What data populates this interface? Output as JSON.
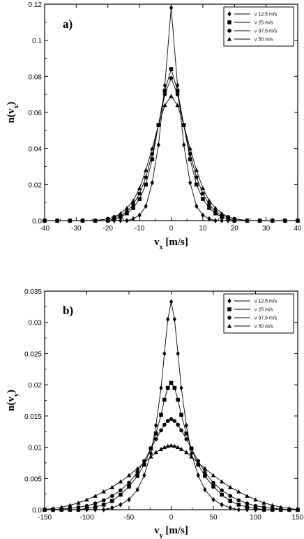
{
  "chart_data": [
    {
      "type": "line",
      "panel_label": "a)",
      "ylabel": "n(v_x)",
      "xlabel": "v_x [m/s]",
      "xlim": [
        -40,
        40
      ],
      "ylim": [
        0,
        0.12
      ],
      "xticks": [
        -40,
        -30,
        -20,
        -10,
        0,
        10,
        20,
        30,
        40
      ],
      "yticks": [
        0,
        0.02,
        0.04,
        0.06,
        0.08,
        0.1,
        0.12
      ],
      "xtick_labels": [
        "-40",
        "-30",
        "-20",
        "-10",
        "0",
        "10",
        "20",
        "30",
        "40"
      ],
      "ytick_labels": [
        "0.0",
        "0.02",
        "0.04",
        "0.06",
        "0.08",
        "0.1",
        "0.12"
      ],
      "legend_position": "top-right",
      "series": [
        {
          "name": "v 12.5 m/s",
          "marker": "diamond",
          "x": [
            -40,
            -36,
            -32,
            -28,
            -24,
            -20,
            -18,
            -16,
            -14,
            -12,
            -10,
            -8,
            -6,
            -4,
            -2,
            0,
            2,
            4,
            6,
            8,
            10,
            12,
            14,
            16,
            18,
            20,
            24,
            28,
            32,
            36,
            40
          ],
          "y": [
            0,
            0,
            0,
            0,
            0,
            0,
            0,
            0,
            0,
            0.001,
            0.003,
            0.008,
            0.021,
            0.042,
            0.075,
            0.118,
            0.075,
            0.042,
            0.021,
            0.008,
            0.003,
            0.001,
            0,
            0,
            0,
            0,
            0,
            0,
            0,
            0,
            0
          ]
        },
        {
          "name": "v 25 m/s",
          "marker": "square",
          "x": [
            -40,
            -36,
            -32,
            -28,
            -24,
            -20,
            -18,
            -16,
            -14,
            -12,
            -10,
            -8,
            -6,
            -4,
            -2,
            0,
            2,
            4,
            6,
            8,
            10,
            12,
            14,
            16,
            18,
            20,
            24,
            28,
            32,
            36,
            40
          ],
          "y": [
            0,
            0,
            0,
            0,
            0,
            0,
            0.001,
            0.002,
            0.004,
            0.007,
            0.012,
            0.02,
            0.034,
            0.053,
            0.072,
            0.084,
            0.072,
            0.053,
            0.034,
            0.02,
            0.012,
            0.007,
            0.004,
            0.002,
            0.001,
            0,
            0,
            0,
            0,
            0,
            0
          ]
        },
        {
          "name": "v 37.5 m/s",
          "marker": "circle",
          "x": [
            -40,
            -36,
            -32,
            -28,
            -24,
            -20,
            -18,
            -16,
            -14,
            -12,
            -10,
            -8,
            -6,
            -4,
            -2,
            0,
            2,
            4,
            6,
            8,
            10,
            12,
            14,
            16,
            18,
            20,
            24,
            28,
            32,
            36,
            40
          ],
          "y": [
            0,
            0,
            0,
            0,
            0,
            0.001,
            0.002,
            0.003,
            0.005,
            0.009,
            0.015,
            0.024,
            0.037,
            0.053,
            0.07,
            0.079,
            0.07,
            0.053,
            0.037,
            0.024,
            0.015,
            0.009,
            0.005,
            0.003,
            0.002,
            0.001,
            0,
            0,
            0,
            0,
            0
          ]
        },
        {
          "name": "v 50 m/s",
          "marker": "triangle",
          "x": [
            -40,
            -36,
            -32,
            -28,
            -24,
            -20,
            -18,
            -16,
            -14,
            -12,
            -10,
            -8,
            -6,
            -4,
            -2,
            0,
            2,
            4,
            6,
            8,
            10,
            12,
            14,
            16,
            18,
            20,
            24,
            28,
            32,
            36,
            40
          ],
          "y": [
            0,
            0,
            0,
            0,
            0,
            0.001,
            0.002,
            0.004,
            0.007,
            0.011,
            0.018,
            0.028,
            0.04,
            0.053,
            0.064,
            0.069,
            0.064,
            0.053,
            0.04,
            0.028,
            0.018,
            0.011,
            0.007,
            0.004,
            0.002,
            0.001,
            0,
            0,
            0,
            0,
            0
          ]
        }
      ]
    },
    {
      "type": "line",
      "panel_label": "b)",
      "ylabel": "n(v_y)",
      "xlabel": "v_y [m/s]",
      "xlim": [
        -150,
        150
      ],
      "ylim": [
        0,
        0.035
      ],
      "xticks": [
        -150,
        -100,
        -50,
        0,
        50,
        100,
        150
      ],
      "yticks": [
        0,
        0.005,
        0.01,
        0.015,
        0.02,
        0.025,
        0.03,
        0.035
      ],
      "xtick_labels": [
        "-150",
        "-100",
        "-50",
        "0",
        "50",
        "100",
        "150"
      ],
      "ytick_labels": [
        "0.0",
        "0.005",
        "0.01",
        "0.015",
        "0.02",
        "0.025",
        "0.03",
        "0.035"
      ],
      "legend_position": "top-right",
      "series": [
        {
          "name": "v 12.5 m/s",
          "marker": "diamond",
          "x": [
            -150,
            -140,
            -130,
            -120,
            -110,
            -100,
            -90,
            -80,
            -70,
            -60,
            -50,
            -40,
            -32,
            -24,
            -18,
            -12,
            -8,
            -4,
            0,
            4,
            8,
            12,
            18,
            24,
            32,
            40,
            50,
            60,
            70,
            80,
            90,
            100,
            110,
            120,
            130,
            140,
            150
          ],
          "y": [
            0,
            0,
            0,
            0,
            0,
            0,
            0,
            0,
            0.0003,
            0.0008,
            0.0016,
            0.0032,
            0.0055,
            0.009,
            0.0135,
            0.0195,
            0.025,
            0.0305,
            0.0333,
            0.0305,
            0.025,
            0.0195,
            0.0135,
            0.009,
            0.0055,
            0.0032,
            0.0016,
            0.0008,
            0.0003,
            0,
            0,
            0,
            0,
            0,
            0,
            0,
            0
          ]
        },
        {
          "name": "v 25 m/s",
          "marker": "square",
          "x": [
            -150,
            -140,
            -130,
            -120,
            -110,
            -100,
            -90,
            -80,
            -70,
            -60,
            -50,
            -40,
            -32,
            -24,
            -18,
            -12,
            -8,
            -4,
            0,
            4,
            8,
            12,
            18,
            24,
            32,
            40,
            50,
            60,
            70,
            80,
            90,
            100,
            110,
            120,
            130,
            140,
            150
          ],
          "y": [
            0,
            0,
            0,
            0,
            0,
            0.0002,
            0.0004,
            0.0008,
            0.0014,
            0.0024,
            0.0037,
            0.0054,
            0.0072,
            0.0098,
            0.0122,
            0.0152,
            0.0176,
            0.0195,
            0.0203,
            0.0195,
            0.0176,
            0.0152,
            0.0122,
            0.0098,
            0.0072,
            0.0054,
            0.0037,
            0.0024,
            0.0014,
            0.0008,
            0.0004,
            0.0002,
            0,
            0,
            0,
            0,
            0
          ]
        },
        {
          "name": "v 37.5 m/s",
          "marker": "circle",
          "x": [
            -150,
            -140,
            -130,
            -120,
            -110,
            -100,
            -90,
            -80,
            -70,
            -60,
            -50,
            -40,
            -32,
            -24,
            -18,
            -12,
            -8,
            -4,
            0,
            4,
            8,
            12,
            18,
            24,
            32,
            40,
            50,
            60,
            70,
            80,
            90,
            100,
            110,
            120,
            130,
            140,
            150
          ],
          "y": [
            0,
            0,
            0.0001,
            0.0002,
            0.0004,
            0.0006,
            0.001,
            0.0015,
            0.0022,
            0.0031,
            0.0043,
            0.006,
            0.0078,
            0.0098,
            0.0113,
            0.0127,
            0.0136,
            0.0142,
            0.0145,
            0.0142,
            0.0136,
            0.0127,
            0.0113,
            0.0098,
            0.0078,
            0.006,
            0.0043,
            0.0031,
            0.0022,
            0.0015,
            0.001,
            0.0006,
            0.0004,
            0.0002,
            0.0001,
            0,
            0
          ]
        },
        {
          "name": "v 50 m/s",
          "marker": "triangle",
          "x": [
            -150,
            -140,
            -130,
            -120,
            -110,
            -100,
            -90,
            -80,
            -70,
            -60,
            -50,
            -40,
            -32,
            -24,
            -18,
            -12,
            -8,
            -4,
            0,
            4,
            8,
            12,
            18,
            24,
            32,
            40,
            50,
            60,
            70,
            80,
            90,
            100,
            110,
            120,
            130,
            140,
            150
          ],
          "y": [
            0,
            0.0002,
            0.0004,
            0.0007,
            0.0011,
            0.0016,
            0.0022,
            0.0029,
            0.0036,
            0.0045,
            0.0055,
            0.0066,
            0.0075,
            0.0085,
            0.0092,
            0.0097,
            0.01,
            0.0102,
            0.0103,
            0.0102,
            0.01,
            0.0097,
            0.0092,
            0.0085,
            0.0075,
            0.0066,
            0.0055,
            0.0045,
            0.0036,
            0.0029,
            0.0022,
            0.0016,
            0.0011,
            0.0007,
            0.0004,
            0.0002,
            0
          ]
        }
      ]
    }
  ]
}
